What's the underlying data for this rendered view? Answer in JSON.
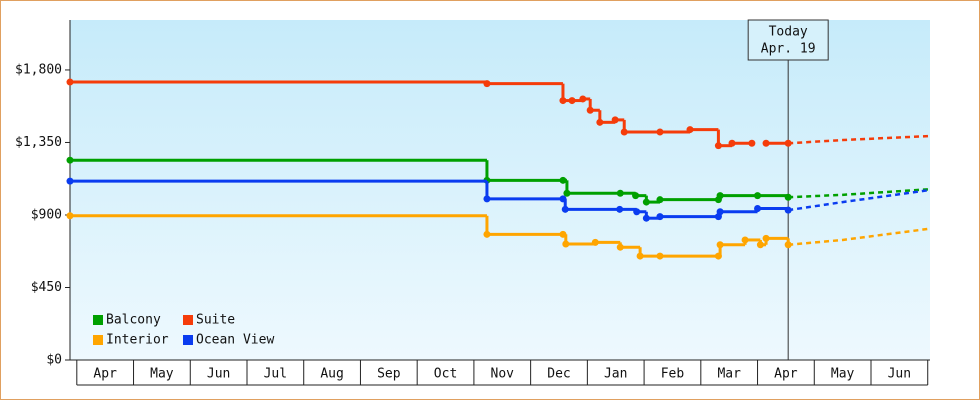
{
  "chart_data": {
    "type": "step-line",
    "categories": [
      "Apr",
      "May",
      "Jun",
      "Jul",
      "Aug",
      "Sep",
      "Oct",
      "Nov",
      "Dec",
      "Jan",
      "Feb",
      "Mar",
      "Apr",
      "May",
      "Jun"
    ],
    "xlim": [
      -0.12,
      15.04
    ],
    "ylim": [
      0,
      2110
    ],
    "yticks": [
      {
        "value": 0,
        "label": "$0"
      },
      {
        "value": 450,
        "label": "$450"
      },
      {
        "value": 900,
        "label": "$900"
      },
      {
        "value": 1350,
        "label": "$1,350"
      },
      {
        "value": 1800,
        "label": "$1,800"
      }
    ],
    "legend": "lower left",
    "series": [
      {
        "name": "Balcony",
        "color": "#00a000",
        "x": [
          -0.12,
          7.23,
          8.57,
          8.64,
          9.58,
          9.85,
          10.04,
          10.28,
          11.31,
          11.34,
          12.0,
          12.54
        ],
        "values": [
          1240,
          1115,
          1115,
          1035,
          1035,
          1020,
          980,
          995,
          995,
          1020,
          1020,
          1010
        ],
        "projection": {
          "x": [
            12.54,
            13.5,
            15.04
          ],
          "values": [
            1010,
            1025,
            1060
          ]
        }
      },
      {
        "name": "Suite",
        "color": "#f53c0a",
        "x": [
          -0.12,
          7.23,
          8.57,
          8.73,
          8.92,
          9.05,
          9.22,
          9.49,
          9.65,
          10.28,
          10.81,
          11.31,
          11.55,
          11.9,
          12.02,
          12.15,
          12.54
        ],
        "values": [
          1725,
          1715,
          1610,
          1610,
          1620,
          1550,
          1475,
          1490,
          1415,
          1415,
          1430,
          1330,
          1345,
          1345,
          null,
          1345,
          1345
        ],
        "projection": {
          "x": [
            12.54,
            13.5,
            15.04
          ],
          "values": [
            1345,
            1365,
            1390
          ]
        }
      },
      {
        "name": "Interior",
        "color": "#ffa500",
        "x": [
          -0.12,
          7.23,
          8.57,
          8.62,
          9.14,
          9.58,
          9.93,
          10.28,
          11.31,
          11.34,
          11.78,
          12.05,
          12.15,
          12.54
        ],
        "values": [
          895,
          780,
          780,
          720,
          730,
          700,
          645,
          645,
          645,
          715,
          745,
          715,
          755,
          715
        ],
        "projection": {
          "x": [
            12.54,
            13.5,
            15.04
          ],
          "values": [
            715,
            745,
            815
          ]
        }
      },
      {
        "name": "Ocean View",
        "color": "#0a3cf0",
        "x": [
          -0.12,
          7.23,
          8.57,
          8.61,
          9.57,
          9.87,
          10.04,
          10.28,
          11.31,
          11.34,
          12.0,
          12.54
        ],
        "values": [
          1110,
          1000,
          1000,
          935,
          935,
          920,
          880,
          890,
          890,
          920,
          940,
          930
        ],
        "projection": {
          "x": [
            12.54,
            13.5,
            15.04
          ],
          "values": [
            930,
            980,
            1055
          ]
        }
      }
    ],
    "annotation": {
      "x": 12.54,
      "lines": [
        "Today",
        "Apr. 19"
      ]
    }
  }
}
